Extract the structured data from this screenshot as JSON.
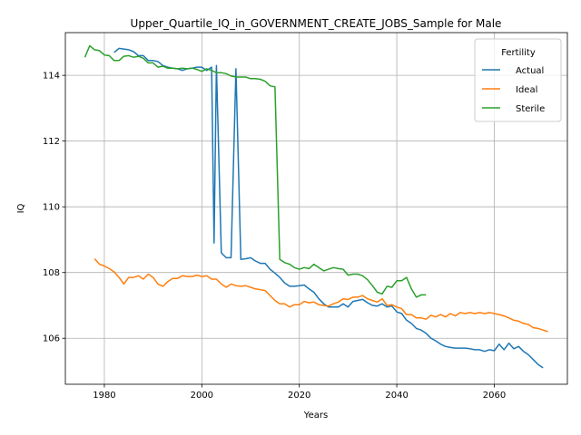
{
  "chart_data": {
    "type": "line",
    "title": "Upper_Quartile_IQ_in_GOVERNMENT_CREATE_JOBS_Sample for Male",
    "xlabel": "Years",
    "ylabel": "IQ",
    "xlim": [
      1972,
      2075
    ],
    "ylim": [
      104.6,
      115.3
    ],
    "xticks": [
      1980,
      2000,
      2020,
      2040,
      2060
    ],
    "yticks": [
      106,
      108,
      110,
      112,
      114
    ],
    "grid": true,
    "legend": {
      "title": "Fertility",
      "placement": "top-right"
    },
    "series": [
      {
        "name": "Actual",
        "color": "#1f77b4",
        "points": [
          [
            1982,
            114.7
          ],
          [
            1983,
            114.82
          ],
          [
            1984,
            114.8
          ],
          [
            1985,
            114.78
          ],
          [
            1986,
            114.72
          ],
          [
            1987,
            114.6
          ],
          [
            1988,
            114.6
          ],
          [
            1989,
            114.45
          ],
          [
            1990,
            114.45
          ],
          [
            1991,
            114.42
          ],
          [
            1992,
            114.3
          ],
          [
            1993,
            114.25
          ],
          [
            1994,
            114.22
          ],
          [
            1995,
            114.2
          ],
          [
            1996,
            114.15
          ],
          [
            1997,
            114.2
          ],
          [
            1998,
            114.22
          ],
          [
            1999,
            114.25
          ],
          [
            2000,
            114.25
          ],
          [
            2001,
            114.15
          ],
          [
            2002,
            114.25
          ],
          [
            2002.5,
            108.9
          ],
          [
            2003,
            114.3
          ],
          [
            2004,
            108.6
          ],
          [
            2005,
            108.45
          ],
          [
            2006,
            108.45
          ],
          [
            2007,
            114.2
          ],
          [
            2008,
            108.4
          ],
          [
            2009,
            108.42
          ],
          [
            2010,
            108.45
          ],
          [
            2011,
            108.35
          ],
          [
            2012,
            108.28
          ],
          [
            2013,
            108.28
          ],
          [
            2014,
            108.1
          ],
          [
            2015,
            107.98
          ],
          [
            2016,
            107.85
          ],
          [
            2017,
            107.68
          ],
          [
            2018,
            107.58
          ],
          [
            2019,
            107.58
          ],
          [
            2020,
            107.6
          ],
          [
            2021,
            107.62
          ],
          [
            2022,
            107.5
          ],
          [
            2023,
            107.4
          ],
          [
            2024,
            107.2
          ],
          [
            2025,
            107.05
          ],
          [
            2026,
            106.95
          ],
          [
            2027,
            106.95
          ],
          [
            2028,
            106.95
          ],
          [
            2029,
            107.05
          ],
          [
            2030,
            106.95
          ],
          [
            2031,
            107.12
          ],
          [
            2032,
            107.15
          ],
          [
            2033,
            107.18
          ],
          [
            2034,
            107.08
          ],
          [
            2035,
            107.0
          ],
          [
            2036,
            106.98
          ],
          [
            2037,
            107.05
          ],
          [
            2038,
            106.95
          ],
          [
            2039,
            106.98
          ],
          [
            2040,
            106.8
          ],
          [
            2041,
            106.75
          ],
          [
            2042,
            106.55
          ],
          [
            2043,
            106.45
          ],
          [
            2044,
            106.3
          ],
          [
            2045,
            106.25
          ],
          [
            2046,
            106.15
          ],
          [
            2047,
            106.0
          ],
          [
            2048,
            105.92
          ],
          [
            2049,
            105.82
          ],
          [
            2050,
            105.75
          ],
          [
            2051,
            105.72
          ],
          [
            2052,
            105.7
          ],
          [
            2053,
            105.7
          ],
          [
            2054,
            105.7
          ],
          [
            2055,
            105.68
          ],
          [
            2056,
            105.65
          ],
          [
            2057,
            105.65
          ],
          [
            2058,
            105.6
          ],
          [
            2059,
            105.65
          ],
          [
            2060,
            105.62
          ],
          [
            2061,
            105.82
          ],
          [
            2062,
            105.65
          ],
          [
            2063,
            105.85
          ],
          [
            2064,
            105.68
          ],
          [
            2065,
            105.75
          ],
          [
            2066,
            105.6
          ],
          [
            2067,
            105.5
          ],
          [
            2068,
            105.35
          ],
          [
            2069,
            105.2
          ],
          [
            2070,
            105.1
          ]
        ]
      },
      {
        "name": "Ideal",
        "color": "#ff7f0e",
        "points": [
          [
            1978,
            108.42
          ],
          [
            1979,
            108.25
          ],
          [
            1980,
            108.2
          ],
          [
            1981,
            108.12
          ],
          [
            1982,
            108.02
          ],
          [
            1983,
            107.85
          ],
          [
            1984,
            107.65
          ],
          [
            1985,
            107.85
          ],
          [
            1986,
            107.85
          ],
          [
            1987,
            107.9
          ],
          [
            1988,
            107.8
          ],
          [
            1989,
            107.95
          ],
          [
            1990,
            107.85
          ],
          [
            1991,
            107.65
          ],
          [
            1992,
            107.58
          ],
          [
            1993,
            107.72
          ],
          [
            1994,
            107.82
          ],
          [
            1995,
            107.82
          ],
          [
            1996,
            107.9
          ],
          [
            1997,
            107.88
          ],
          [
            1998,
            107.88
          ],
          [
            1999,
            107.92
          ],
          [
            2000,
            107.88
          ],
          [
            2001,
            107.9
          ],
          [
            2002,
            107.8
          ],
          [
            2003,
            107.8
          ],
          [
            2004,
            107.65
          ],
          [
            2005,
            107.55
          ],
          [
            2006,
            107.65
          ],
          [
            2007,
            107.6
          ],
          [
            2008,
            107.58
          ],
          [
            2009,
            107.6
          ],
          [
            2010,
            107.55
          ],
          [
            2011,
            107.5
          ],
          [
            2012,
            107.48
          ],
          [
            2013,
            107.45
          ],
          [
            2014,
            107.3
          ],
          [
            2015,
            107.15
          ],
          [
            2016,
            107.05
          ],
          [
            2017,
            107.05
          ],
          [
            2018,
            106.95
          ],
          [
            2019,
            107.02
          ],
          [
            2020,
            107.02
          ],
          [
            2021,
            107.12
          ],
          [
            2022,
            107.08
          ],
          [
            2023,
            107.1
          ],
          [
            2024,
            107.02
          ],
          [
            2025,
            107.0
          ],
          [
            2026,
            106.98
          ],
          [
            2027,
            107.05
          ],
          [
            2028,
            107.1
          ],
          [
            2029,
            107.2
          ],
          [
            2030,
            107.18
          ],
          [
            2031,
            107.25
          ],
          [
            2032,
            107.25
          ],
          [
            2033,
            107.3
          ],
          [
            2034,
            107.2
          ],
          [
            2035,
            107.15
          ],
          [
            2036,
            107.1
          ],
          [
            2037,
            107.2
          ],
          [
            2038,
            107.0
          ],
          [
            2039,
            107.02
          ],
          [
            2040,
            106.95
          ],
          [
            2041,
            106.9
          ],
          [
            2042,
            106.72
          ],
          [
            2043,
            106.72
          ],
          [
            2044,
            106.62
          ],
          [
            2045,
            106.62
          ],
          [
            2046,
            106.58
          ],
          [
            2047,
            106.7
          ],
          [
            2048,
            106.65
          ],
          [
            2049,
            106.72
          ],
          [
            2050,
            106.65
          ],
          [
            2051,
            106.75
          ],
          [
            2052,
            106.68
          ],
          [
            2053,
            106.78
          ],
          [
            2054,
            106.75
          ],
          [
            2055,
            106.78
          ],
          [
            2056,
            106.75
          ],
          [
            2057,
            106.78
          ],
          [
            2058,
            106.75
          ],
          [
            2059,
            106.78
          ],
          [
            2060,
            106.75
          ],
          [
            2061,
            106.72
          ],
          [
            2062,
            106.68
          ],
          [
            2063,
            106.62
          ],
          [
            2064,
            106.55
          ],
          [
            2065,
            106.52
          ],
          [
            2066,
            106.45
          ],
          [
            2067,
            106.42
          ],
          [
            2068,
            106.32
          ],
          [
            2069,
            106.3
          ],
          [
            2070,
            106.25
          ],
          [
            2071,
            106.2
          ]
        ]
      },
      {
        "name": "Sterile",
        "color": "#2ca02c",
        "points": [
          [
            1976,
            114.55
          ],
          [
            1977,
            114.9
          ],
          [
            1978,
            114.78
          ],
          [
            1979,
            114.75
          ],
          [
            1980,
            114.62
          ],
          [
            1981,
            114.6
          ],
          [
            1982,
            114.45
          ],
          [
            1983,
            114.45
          ],
          [
            1984,
            114.58
          ],
          [
            1985,
            114.6
          ],
          [
            1986,
            114.55
          ],
          [
            1987,
            114.58
          ],
          [
            1988,
            114.52
          ],
          [
            1989,
            114.38
          ],
          [
            1990,
            114.38
          ],
          [
            1991,
            114.25
          ],
          [
            1992,
            114.28
          ],
          [
            1993,
            114.22
          ],
          [
            1994,
            114.22
          ],
          [
            1995,
            114.2
          ],
          [
            1996,
            114.22
          ],
          [
            1997,
            114.2
          ],
          [
            1998,
            114.22
          ],
          [
            1999,
            114.18
          ],
          [
            2000,
            114.12
          ],
          [
            2001,
            114.2
          ],
          [
            2002,
            114.15
          ],
          [
            2003,
            114.08
          ],
          [
            2004,
            114.08
          ],
          [
            2005,
            114.05
          ],
          [
            2006,
            113.98
          ],
          [
            2007,
            113.95
          ],
          [
            2008,
            113.95
          ],
          [
            2009,
            113.95
          ],
          [
            2010,
            113.9
          ],
          [
            2011,
            113.9
          ],
          [
            2012,
            113.88
          ],
          [
            2013,
            113.82
          ],
          [
            2014,
            113.68
          ],
          [
            2015,
            113.65
          ],
          [
            2016,
            108.4
          ],
          [
            2017,
            108.3
          ],
          [
            2018,
            108.25
          ],
          [
            2019,
            108.15
          ],
          [
            2020,
            108.1
          ],
          [
            2021,
            108.15
          ],
          [
            2022,
            108.12
          ],
          [
            2023,
            108.25
          ],
          [
            2024,
            108.15
          ],
          [
            2025,
            108.05
          ],
          [
            2026,
            108.1
          ],
          [
            2027,
            108.15
          ],
          [
            2028,
            108.12
          ],
          [
            2029,
            108.1
          ],
          [
            2030,
            107.92
          ],
          [
            2031,
            107.95
          ],
          [
            2032,
            107.95
          ],
          [
            2033,
            107.9
          ],
          [
            2034,
            107.78
          ],
          [
            2035,
            107.6
          ],
          [
            2036,
            107.4
          ],
          [
            2037,
            107.35
          ],
          [
            2038,
            107.58
          ],
          [
            2039,
            107.55
          ],
          [
            2040,
            107.75
          ],
          [
            2041,
            107.75
          ],
          [
            2042,
            107.85
          ],
          [
            2043,
            107.5
          ],
          [
            2044,
            107.25
          ],
          [
            2045,
            107.32
          ],
          [
            2046,
            107.32
          ]
        ]
      }
    ]
  }
}
